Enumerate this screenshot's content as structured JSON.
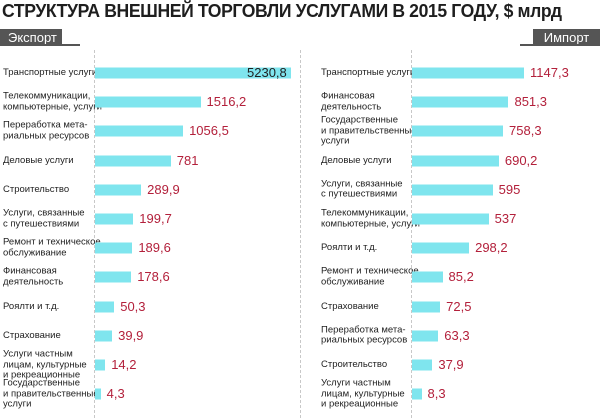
{
  "title": "СТРУКТУРА ВНЕШНЕЙ ТОРГОВЛИ УСЛУГАМИ В 2015 ГОДУ, $ млрд",
  "colors": {
    "bar": "#7fe5ee",
    "value": "#b3203b",
    "tab_bg": "#555555"
  },
  "chart_data": [
    {
      "type": "bar",
      "orientation": "horizontal",
      "panel_label": "Экспорт",
      "categories": [
        "Транспортные услуги",
        "Телекоммуникации,\nкомпьютерные, услуги",
        "Переработка мета-\nриальных ресурсов",
        "Деловые услуги",
        "Строительство",
        "Услуги, связанные\nс путешествиями",
        "Ремонт и техническое\nобслуживание",
        "Финансовая\nдеятельность",
        "Роялти и т.д.",
        "Страхование",
        "Услуги частным\nлицам, культурные\nи рекреационные",
        "Государственные\nи правительственные\nуслуги"
      ],
      "values": [
        5230.8,
        1516.2,
        1056.5,
        781,
        289.9,
        199.7,
        189.6,
        178.6,
        50.3,
        39.9,
        14.2,
        4.3
      ],
      "value_labels": [
        "5230,8",
        "1516,2",
        "1056,5",
        "781",
        "289,9",
        "199,7",
        "189,6",
        "178,6",
        "50,3",
        "39,9",
        "14,2",
        "4,3"
      ]
    },
    {
      "type": "bar",
      "orientation": "horizontal",
      "panel_label": "Импорт",
      "categories": [
        "Транспортные услуги",
        "Финансовая\nдеятельность",
        "Государственные\nи правительственные\nуслуги",
        "Деловые услуги",
        "Услуги, связанные\nс путешествиями",
        "Телекоммуникации,\nкомпьютерные, услуги",
        "Роялти и т.д.",
        "Ремонт и техническое\nобслуживание",
        "Страхование",
        "Переработка мета-\nриальных ресурсов",
        "Строительство",
        "Услуги частным\nлицам, культурные\nи рекреационные"
      ],
      "values": [
        1147.3,
        851.3,
        758.3,
        690.2,
        595,
        537,
        298.2,
        85.2,
        72.5,
        63.3,
        37.9,
        8.3
      ],
      "value_labels": [
        "1147,3",
        "851,3",
        "758,3",
        "690,2",
        "595",
        "537",
        "298,2",
        "85,2",
        "72,5",
        "63,3",
        "37,9",
        "8,3"
      ]
    }
  ]
}
